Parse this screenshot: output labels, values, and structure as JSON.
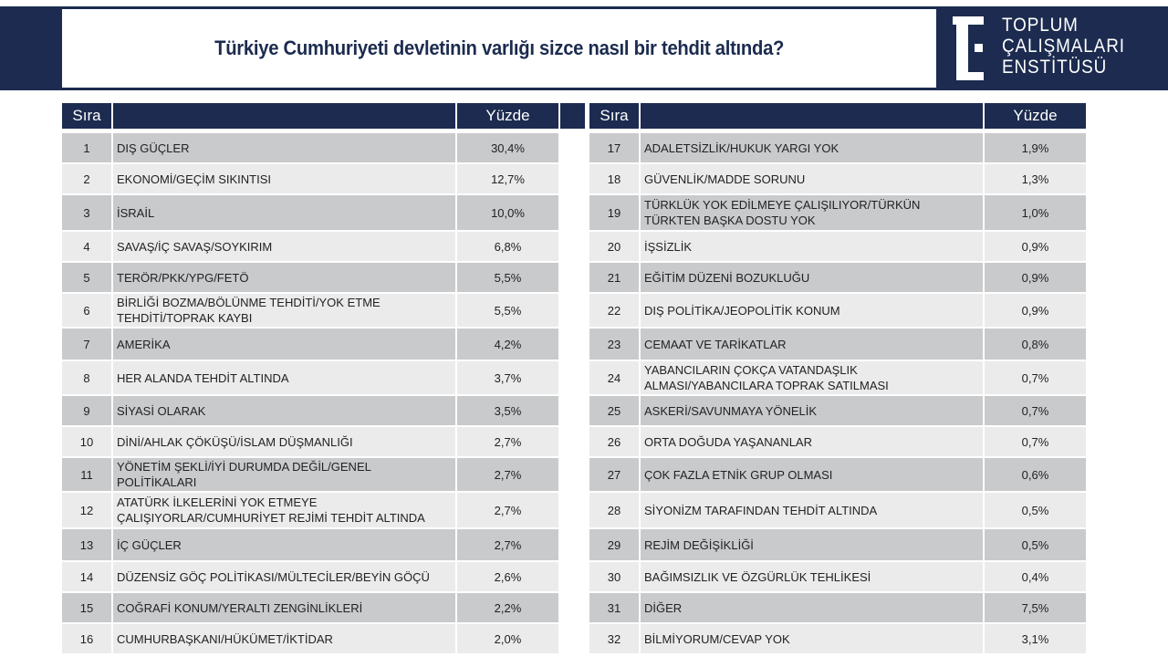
{
  "title": "Türkiye Cumhuriyeti devletinin varlığı sizce nasıl bir tehdit altında?",
  "logo": {
    "lines": [
      "TOPLUM",
      "ÇALIŞMALARI",
      "ENSTİTÜSÜ"
    ]
  },
  "colors": {
    "navy": "#1c2b4f",
    "row_dark": "#c9cacc",
    "row_light": "#ebebec"
  },
  "headers": {
    "rank": "Sıra",
    "item": "",
    "percent": "Yüzde"
  },
  "left": [
    {
      "rank": "1",
      "item": "DIŞ GÜÇLER",
      "percent": "30,4%"
    },
    {
      "rank": "2",
      "item": "EKONOMİ/GEÇİM SIKINTISI",
      "percent": "12,7%"
    },
    {
      "rank": "3",
      "item": "İSRAİL",
      "percent": "10,0%"
    },
    {
      "rank": "4",
      "item": "SAVAŞ/İÇ SAVAŞ/SOYKIRIM",
      "percent": "6,8%"
    },
    {
      "rank": "5",
      "item": "TERÖR/PKK/YPG/FETÖ",
      "percent": "5,5%"
    },
    {
      "rank": "6",
      "item": "BİRLİĞİ BOZMA/BÖLÜNME TEHDİTİ/YOK ETME TEHDİTİ/TOPRAK KAYBI",
      "percent": "5,5%"
    },
    {
      "rank": "7",
      "item": "AMERİKA",
      "percent": "4,2%"
    },
    {
      "rank": "8",
      "item": "HER ALANDA TEHDİT ALTINDA",
      "percent": "3,7%"
    },
    {
      "rank": "9",
      "item": "SİYASİ OLARAK",
      "percent": "3,5%"
    },
    {
      "rank": "10",
      "item": "DİNİ/AHLAK ÇÖKÜŞÜ/İSLAM DÜŞMANLIĞI",
      "percent": "2,7%"
    },
    {
      "rank": "11",
      "item": "YÖNETİM ŞEKLİ/İYİ DURUMDA DEĞİL/GENEL POLİTİKALARI",
      "percent": "2,7%"
    },
    {
      "rank": "12",
      "item": "ATATÜRK İLKELERİNİ YOK ETMEYE ÇALIŞIYORLAR/CUMHURİYET REJİMİ TEHDİT ALTINDA",
      "percent": "2,7%"
    },
    {
      "rank": "13",
      "item": "İÇ GÜÇLER",
      "percent": "2,7%"
    },
    {
      "rank": "14",
      "item": "DÜZENSİZ GÖÇ POLİTİKASI/MÜLTECİLER/BEYİN GÖÇÜ",
      "percent": "2,6%"
    },
    {
      "rank": "15",
      "item": "COĞRAFİ KONUM/YERALTI ZENGİNLİKLERİ",
      "percent": "2,2%"
    },
    {
      "rank": "16",
      "item": "CUMHURBAŞKANI/HÜKÜMET/İKTİDAR",
      "percent": "2,0%"
    }
  ],
  "right": [
    {
      "rank": "17",
      "item": "ADALETSİZLİK/HUKUK YARGI YOK",
      "percent": "1,9%"
    },
    {
      "rank": "18",
      "item": "GÜVENLİK/MADDE SORUNU",
      "percent": "1,3%"
    },
    {
      "rank": "19",
      "item": "TÜRKLÜK YOK EDİLMEYE ÇALIŞILIYOR/TÜRKÜN TÜRKTEN BAŞKA DOSTU YOK",
      "percent": "1,0%"
    },
    {
      "rank": "20",
      "item": "İŞSİZLİK",
      "percent": "0,9%"
    },
    {
      "rank": "21",
      "item": "EĞİTİM DÜZENİ BOZUKLUĞU",
      "percent": "0,9%"
    },
    {
      "rank": "22",
      "item": "DIŞ POLİTİKA/JEOPOLİTİK KONUM",
      "percent": "0,9%"
    },
    {
      "rank": "23",
      "item": "CEMAAT VE TARİKATLAR",
      "percent": "0,8%"
    },
    {
      "rank": "24",
      "item": "YABANCILARIN ÇOKÇA VATANDAŞLIK ALMASI/YABANCILARA TOPRAK SATILMASI",
      "percent": "0,7%"
    },
    {
      "rank": "25",
      "item": "ASKERİ/SAVUNMAYA YÖNELİK",
      "percent": "0,7%"
    },
    {
      "rank": "26",
      "item": "ORTA DOĞUDA YAŞANANLAR",
      "percent": "0,7%"
    },
    {
      "rank": "27",
      "item": "ÇOK FAZLA ETNİK GRUP OLMASI",
      "percent": "0,6%"
    },
    {
      "rank": "28",
      "item": "SİYONİZM TARAFINDAN TEHDİT ALTINDA",
      "percent": "0,5%"
    },
    {
      "rank": "29",
      "item": "REJİM DEĞİŞİKLİĞİ",
      "percent": "0,5%"
    },
    {
      "rank": "30",
      "item": "BAĞIMSIZLIK VE ÖZGÜRLÜK TEHLİKESİ",
      "percent": "0,4%"
    },
    {
      "rank": "31",
      "item": "DİĞER",
      "percent": "7,5%"
    },
    {
      "rank": "32",
      "item": "BİLMİYORUM/CEVAP YOK",
      "percent": "3,1%"
    }
  ]
}
